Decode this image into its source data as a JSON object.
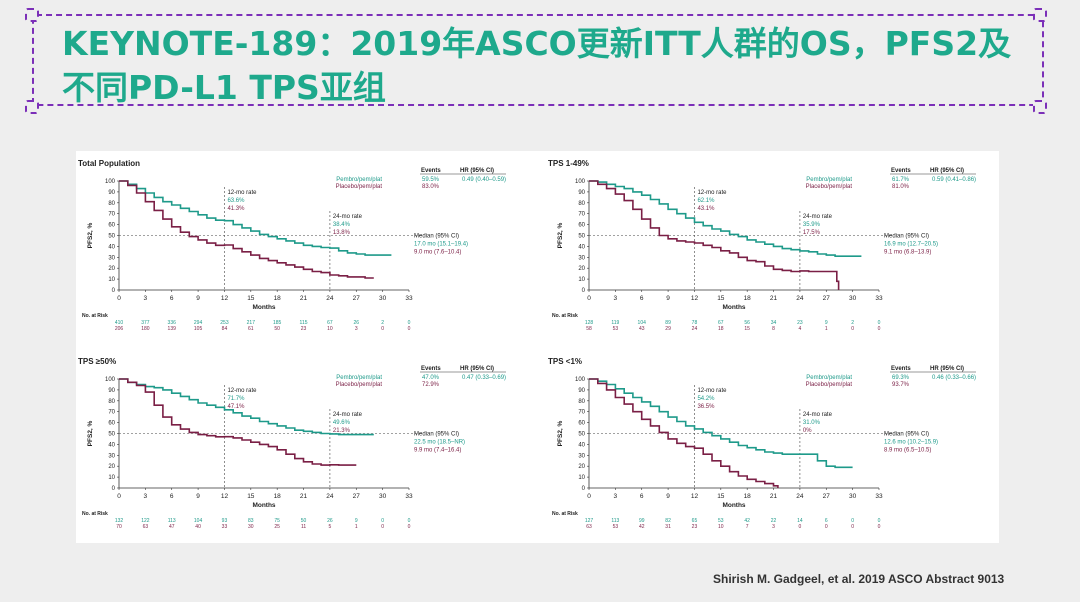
{
  "slide": {
    "title": "KEYNOTE-189：2019年ASCO更新ITT人群的OS，PFS2及不同PD-L1 TPS亚组",
    "citation": "Shirish M. Gadgeel,  et al. 2019 ASCO Abstract 9013"
  },
  "colors": {
    "pembro": "#1e9a8a",
    "placebo": "#7a1f45",
    "title": "#1ea98c",
    "frame": "#7b2fb8"
  },
  "chart_data": [
    {
      "type": "line",
      "title": "Total Population",
      "ylabel": "PFS2, %",
      "xlabel": "Months",
      "x_ticks": [
        0,
        3,
        6,
        9,
        12,
        15,
        18,
        21,
        24,
        27,
        30,
        33
      ],
      "y_ticks": [
        0,
        10,
        20,
        30,
        40,
        50,
        60,
        70,
        80,
        90,
        100
      ],
      "xlim": [
        0,
        33
      ],
      "ylim": [
        0,
        100
      ],
      "legend_header": [
        "Events",
        "HR (95% CI)"
      ],
      "series": [
        {
          "name": "Pembro/pem/plat",
          "events": "59.5%",
          "hr": "0.49 (0.40–0.59)",
          "median": "17.0 mo (15.1–19.4)",
          "x": [
            0,
            1,
            2,
            3,
            4,
            5,
            6,
            7,
            8,
            9,
            10,
            11,
            12,
            13,
            14,
            15,
            16,
            17,
            18,
            19,
            20,
            21,
            22,
            23,
            24,
            25,
            26,
            27,
            28,
            29,
            30,
            31
          ],
          "y": [
            100,
            97,
            93,
            89,
            85,
            81,
            78,
            75,
            72,
            69,
            66,
            64,
            63.6,
            60,
            57,
            54,
            51,
            49,
            47,
            45,
            43,
            41,
            40,
            39,
            38.4,
            36,
            34,
            33,
            32,
            32,
            32,
            32
          ]
        },
        {
          "name": "Placebo/pem/plat",
          "events": "83.0%",
          "hr": "",
          "median": "9.0 mo (7.6–10.4)",
          "x": [
            0,
            1,
            2,
            3,
            4,
            5,
            6,
            7,
            8,
            9,
            10,
            11,
            12,
            13,
            14,
            15,
            16,
            17,
            18,
            19,
            20,
            21,
            22,
            23,
            24,
            25,
            26,
            27,
            28,
            29
          ],
          "y": [
            100,
            96,
            89,
            81,
            73,
            65,
            58,
            53,
            49,
            46,
            43,
            41,
            41.3,
            38,
            35,
            32,
            29,
            27,
            25,
            23,
            21,
            19,
            17,
            16,
            13.8,
            13,
            12,
            12,
            11,
            11
          ]
        }
      ],
      "annotations": [
        {
          "label": "12-mo rate",
          "values": [
            "63.6%",
            "41.3%"
          ]
        },
        {
          "label": "24-mo rate",
          "values": [
            "38.4%",
            "13.8%"
          ]
        },
        {
          "label": "Median (95% CI)",
          "values": [
            "17.0 mo (15.1–19.4)",
            "9.0 mo (7.6–10.4)"
          ]
        }
      ],
      "at_risk_label": "No. at Risk",
      "at_risk": [
        [
          "410",
          "377",
          "336",
          "294",
          "253",
          "217",
          "185",
          "115",
          "67",
          "26",
          "2",
          "0"
        ],
        [
          "206",
          "180",
          "139",
          "105",
          "84",
          "61",
          "50",
          "23",
          "10",
          "3",
          "0",
          "0"
        ]
      ]
    },
    {
      "type": "line",
      "title": "TPS 1-49%",
      "ylabel": "PFS2, %",
      "xlabel": "Months",
      "x_ticks": [
        0,
        3,
        6,
        9,
        12,
        15,
        18,
        21,
        24,
        27,
        30,
        33
      ],
      "y_ticks": [
        0,
        10,
        20,
        30,
        40,
        50,
        60,
        70,
        80,
        90,
        100
      ],
      "xlim": [
        0,
        33
      ],
      "ylim": [
        0,
        100
      ],
      "legend_header": [
        "Events",
        "HR (95% CI)"
      ],
      "series": [
        {
          "name": "Pembro/pem/plat",
          "events": "61.7%",
          "hr": "0.59 (0.41–0.86)",
          "median": "16.9 mo (12.7–20.5)",
          "x": [
            0,
            1,
            2,
            3,
            4,
            5,
            6,
            7,
            8,
            9,
            10,
            11,
            12,
            13,
            14,
            15,
            16,
            17,
            18,
            19,
            20,
            21,
            22,
            23,
            24,
            25,
            26,
            27,
            28,
            29,
            30,
            31
          ],
          "y": [
            100,
            99,
            97,
            95,
            93,
            90,
            87,
            83,
            79,
            74,
            70,
            66,
            62.1,
            59,
            56,
            54,
            51,
            49,
            46,
            44,
            42,
            40,
            38,
            37,
            35.9,
            35,
            33,
            32,
            31,
            31,
            31,
            31
          ]
        },
        {
          "name": "Placebo/pem/plat",
          "events": "81.0%",
          "hr": "",
          "median": "9.1 mo (6.8–13.9)",
          "x": [
            0,
            1,
            2,
            3,
            4,
            5,
            6,
            7,
            8,
            9,
            10,
            11,
            12,
            13,
            14,
            15,
            16,
            17,
            18,
            19,
            20,
            21,
            22,
            23,
            24,
            25,
            26,
            27,
            28,
            28.2,
            28.4
          ],
          "y": [
            100,
            97,
            93,
            88,
            82,
            74,
            65,
            57,
            50,
            47,
            45,
            44,
            43.1,
            41,
            39,
            36,
            34,
            30,
            27,
            26,
            22,
            19,
            18,
            17,
            17.5,
            17,
            17,
            17,
            17,
            8,
            0
          ]
        }
      ],
      "annotations": [
        {
          "label": "12-mo rate",
          "values": [
            "62.1%",
            "43.1%"
          ]
        },
        {
          "label": "24-mo rate",
          "values": [
            "35.9%",
            "17.5%"
          ]
        },
        {
          "label": "Median (95% CI)",
          "values": [
            "16.9 mo (12.7–20.5)",
            "9.1 mo (6.8–13.9)"
          ]
        }
      ],
      "at_risk_label": "No. at Risk",
      "at_risk": [
        [
          "128",
          "119",
          "104",
          "89",
          "78",
          "67",
          "56",
          "34",
          "23",
          "9",
          "2",
          "0"
        ],
        [
          "58",
          "53",
          "43",
          "29",
          "24",
          "18",
          "15",
          "8",
          "4",
          "1",
          "0",
          "0"
        ]
      ]
    },
    {
      "type": "line",
      "title": "TPS ≥50%",
      "ylabel": "PFS2, %",
      "xlabel": "Months",
      "x_ticks": [
        0,
        3,
        6,
        9,
        12,
        15,
        18,
        21,
        24,
        27,
        30,
        33
      ],
      "y_ticks": [
        0,
        10,
        20,
        30,
        40,
        50,
        60,
        70,
        80,
        90,
        100
      ],
      "xlim": [
        0,
        33
      ],
      "ylim": [
        0,
        100
      ],
      "legend_header": [
        "Events",
        "HR (95% CI)"
      ],
      "series": [
        {
          "name": "Pembro/pem/plat",
          "events": "47.0%",
          "hr": "0.47 (0.33–0.69)",
          "median": "22.5 mo (18.5–NR)",
          "x": [
            0,
            1,
            2,
            3,
            4,
            5,
            6,
            7,
            8,
            9,
            10,
            11,
            12,
            13,
            14,
            15,
            16,
            17,
            18,
            19,
            20,
            21,
            22,
            23,
            24,
            25,
            26,
            27,
            28,
            29
          ],
          "y": [
            100,
            97,
            95,
            93,
            92,
            90,
            87,
            84,
            81,
            78,
            76,
            74,
            71.7,
            69,
            66,
            64,
            61,
            59,
            57,
            55,
            53,
            52,
            51,
            50,
            49.6,
            49,
            49,
            49,
            49,
            49
          ]
        },
        {
          "name": "Placebo/pem/plat",
          "events": "72.9%",
          "hr": "",
          "median": "9.9 mo (7.4–16.4)",
          "x": [
            0,
            1,
            2,
            3,
            4,
            5,
            6,
            7,
            8,
            9,
            10,
            11,
            12,
            13,
            14,
            15,
            16,
            17,
            18,
            19,
            20,
            21,
            22,
            23,
            24,
            25,
            26,
            27
          ],
          "y": [
            100,
            97,
            94,
            88,
            76,
            65,
            58,
            54,
            51,
            49,
            48,
            47,
            47.1,
            46,
            44,
            42,
            40,
            38,
            35,
            31,
            27,
            24,
            22,
            21,
            21.3,
            21,
            21,
            21
          ]
        }
      ],
      "annotations": [
        {
          "label": "12-mo rate",
          "values": [
            "71.7%",
            "47.1%"
          ]
        },
        {
          "label": "24-mo rate",
          "values": [
            "49.6%",
            "21.3%"
          ]
        },
        {
          "label": "Median (95% CI)",
          "values": [
            "22.5 mo (18.5–NR)",
            "9.9 mo (7.4–16.4)"
          ]
        }
      ],
      "at_risk_label": "No. at Risk",
      "at_risk": [
        [
          "132",
          "122",
          "113",
          "104",
          "93",
          "83",
          "75",
          "50",
          "26",
          "9",
          "0",
          "0"
        ],
        [
          "70",
          "63",
          "47",
          "40",
          "33",
          "30",
          "25",
          "11",
          "5",
          "1",
          "0",
          "0"
        ]
      ]
    },
    {
      "type": "line",
      "title": "TPS <1%",
      "ylabel": "PFS2, %",
      "xlabel": "Months",
      "x_ticks": [
        0,
        3,
        6,
        9,
        12,
        15,
        18,
        21,
        24,
        27,
        30,
        33
      ],
      "y_ticks": [
        0,
        10,
        20,
        30,
        40,
        50,
        60,
        70,
        80,
        90,
        100
      ],
      "xlim": [
        0,
        33
      ],
      "ylim": [
        0,
        100
      ],
      "legend_header": [
        "Events",
        "HR (95% CI)"
      ],
      "series": [
        {
          "name": "Pembro/pem/plat",
          "events": "69.3%",
          "hr": "0.46 (0.33–0.66)",
          "median": "12.6 mo (10.2–15.9)",
          "x": [
            0,
            1,
            2,
            3,
            4,
            5,
            6,
            7,
            8,
            9,
            10,
            11,
            12,
            13,
            14,
            15,
            16,
            17,
            18,
            19,
            20,
            21,
            22,
            23,
            24,
            25,
            26,
            27,
            28,
            29,
            30
          ],
          "y": [
            100,
            98,
            95,
            91,
            87,
            83,
            79,
            75,
            70,
            65,
            61,
            57,
            54.2,
            51,
            48,
            45,
            42,
            39,
            37,
            35,
            33,
            32,
            31,
            31,
            31.0,
            31,
            25,
            20,
            19,
            19,
            19
          ]
        },
        {
          "name": "Placebo/pem/plat",
          "events": "93.7%",
          "hr": "",
          "median": "8.9 mo (6.5–10.5)",
          "x": [
            0,
            1,
            2,
            3,
            4,
            5,
            6,
            7,
            8,
            9,
            10,
            11,
            12,
            13,
            14,
            15,
            16,
            17,
            18,
            19,
            20,
            21,
            21.5
          ],
          "y": [
            100,
            96,
            90,
            83,
            77,
            70,
            63,
            57,
            51,
            45,
            41,
            38,
            36.5,
            31,
            25,
            20,
            15,
            11,
            8,
            6,
            4,
            2,
            0
          ]
        }
      ],
      "annotations": [
        {
          "label": "12-mo rate",
          "values": [
            "54.2%",
            "36.5%"
          ]
        },
        {
          "label": "24-mo rate",
          "values": [
            "31.0%",
            "0%"
          ]
        },
        {
          "label": "Median (95% CI)",
          "values": [
            "12.6 mo (10.2–15.9)",
            "8.9 mo (6.5–10.5)"
          ]
        }
      ],
      "at_risk_label": "No. at Risk",
      "at_risk": [
        [
          "127",
          "113",
          "99",
          "82",
          "65",
          "53",
          "42",
          "22",
          "14",
          "6",
          "0",
          "0"
        ],
        [
          "63",
          "53",
          "42",
          "31",
          "23",
          "10",
          "7",
          "3",
          "0",
          "0",
          "0",
          "0"
        ]
      ]
    }
  ]
}
